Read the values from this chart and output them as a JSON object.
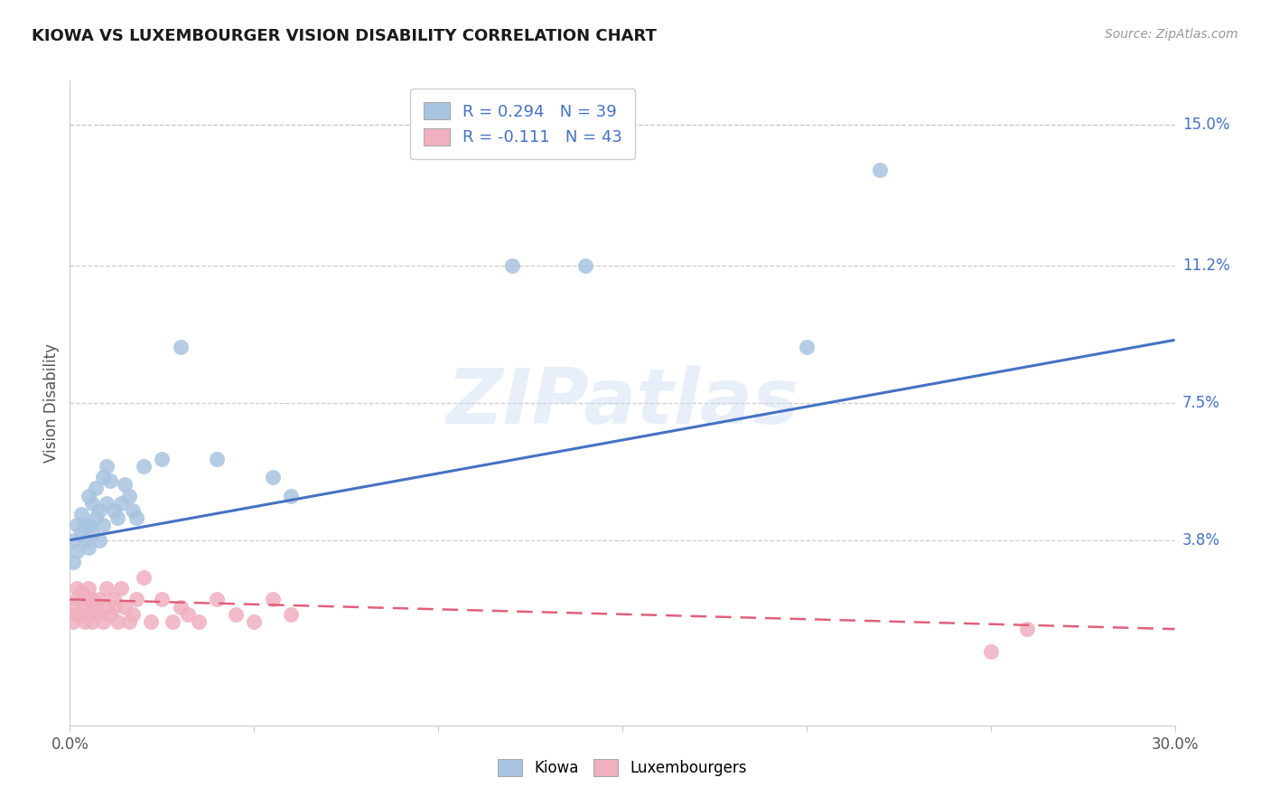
{
  "title": "KIOWA VS LUXEMBOURGER VISION DISABILITY CORRELATION CHART",
  "source": "Source: ZipAtlas.com",
  "ylabel": "Vision Disability",
  "xlim": [
    0.0,
    0.3
  ],
  "ylim": [
    -0.012,
    0.162
  ],
  "kiowa_R": 0.294,
  "kiowa_N": 39,
  "lux_R": -0.111,
  "lux_N": 43,
  "kiowa_color": "#a8c4e0",
  "kiowa_line_color": "#4472c4",
  "lux_color": "#f0b0c0",
  "lux_line_color": "#e0607a",
  "background_color": "#ffffff",
  "grid_color": "#cccccc",
  "ytick_vals": [
    0.038,
    0.075,
    0.112,
    0.15
  ],
  "ytick_labels": [
    "3.8%",
    "7.5%",
    "11.2%",
    "15.0%"
  ],
  "xtick_vals": [
    0.0,
    0.05,
    0.1,
    0.15,
    0.2,
    0.25,
    0.3
  ],
  "xtick_labels": [
    "0.0%",
    "",
    "",
    "",
    "",
    "",
    "30.0%"
  ],
  "kiowa_line_x0": 0.0,
  "kiowa_line_y0": 0.038,
  "kiowa_line_x1": 0.3,
  "kiowa_line_y1": 0.092,
  "lux_line_x0": 0.0,
  "lux_line_y0": 0.022,
  "lux_line_x1": 0.3,
  "lux_line_y1": 0.014,
  "kiowa_x": [
    0.001,
    0.001,
    0.002,
    0.002,
    0.003,
    0.003,
    0.004,
    0.004,
    0.005,
    0.005,
    0.005,
    0.006,
    0.006,
    0.007,
    0.007,
    0.008,
    0.008,
    0.009,
    0.009,
    0.01,
    0.01,
    0.011,
    0.012,
    0.013,
    0.014,
    0.015,
    0.016,
    0.017,
    0.018,
    0.02,
    0.025,
    0.03,
    0.04,
    0.055,
    0.06,
    0.12,
    0.14,
    0.2,
    0.22
  ],
  "kiowa_y": [
    0.032,
    0.038,
    0.035,
    0.042,
    0.04,
    0.045,
    0.038,
    0.042,
    0.036,
    0.042,
    0.05,
    0.04,
    0.048,
    0.044,
    0.052,
    0.038,
    0.046,
    0.042,
    0.055,
    0.048,
    0.058,
    0.054,
    0.046,
    0.044,
    0.048,
    0.053,
    0.05,
    0.046,
    0.044,
    0.058,
    0.06,
    0.09,
    0.06,
    0.055,
    0.05,
    0.112,
    0.112,
    0.09,
    0.138
  ],
  "lux_x": [
    0.001,
    0.001,
    0.002,
    0.002,
    0.002,
    0.003,
    0.003,
    0.004,
    0.004,
    0.005,
    0.005,
    0.005,
    0.006,
    0.006,
    0.007,
    0.007,
    0.008,
    0.009,
    0.01,
    0.01,
    0.011,
    0.012,
    0.012,
    0.013,
    0.014,
    0.015,
    0.016,
    0.017,
    0.018,
    0.02,
    0.022,
    0.025,
    0.028,
    0.03,
    0.032,
    0.035,
    0.04,
    0.045,
    0.05,
    0.055,
    0.06,
    0.25,
    0.26
  ],
  "lux_y": [
    0.02,
    0.016,
    0.018,
    0.022,
    0.025,
    0.018,
    0.024,
    0.016,
    0.02,
    0.018,
    0.022,
    0.025,
    0.016,
    0.022,
    0.018,
    0.02,
    0.022,
    0.016,
    0.02,
    0.025,
    0.018,
    0.02,
    0.022,
    0.016,
    0.025,
    0.02,
    0.016,
    0.018,
    0.022,
    0.028,
    0.016,
    0.022,
    0.016,
    0.02,
    0.018,
    0.016,
    0.022,
    0.018,
    0.016,
    0.022,
    0.018,
    0.008,
    0.014
  ]
}
